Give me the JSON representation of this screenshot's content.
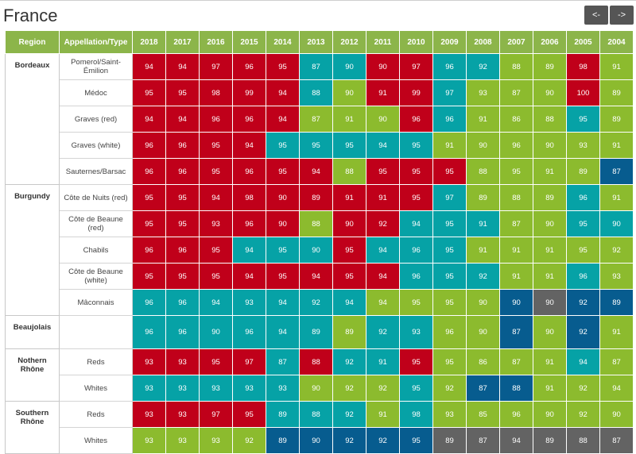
{
  "page": {
    "title": "France"
  },
  "nav": {
    "prev_label": "<-",
    "next_label": "->"
  },
  "table": {
    "headers": [
      "Region",
      "Appellation/Type",
      "2018",
      "2017",
      "2016",
      "2015",
      "2014",
      "2013",
      "2012",
      "2011",
      "2010",
      "2009",
      "2008",
      "2007",
      "2006",
      "2005",
      "2004"
    ],
    "colors": {
      "red": "#c0001a",
      "teal": "#06a2a6",
      "green": "#8cbb2e",
      "blue": "#075c8f",
      "gray": "#636363",
      "header": "#8cb54a"
    },
    "rows": [
      {
        "region": "Bordeaux",
        "span": 5,
        "appellation": "Pomerol/Saint-Émilion",
        "scores": [
          94,
          94,
          97,
          96,
          95,
          87,
          90,
          90,
          97,
          96,
          92,
          88,
          89,
          98,
          91
        ],
        "colors": [
          "r",
          "r",
          "r",
          "r",
          "r",
          "t",
          "t",
          "r",
          "r",
          "t",
          "t",
          "g",
          "g",
          "r",
          "g"
        ]
      },
      {
        "appellation": "Médoc",
        "scores": [
          95,
          95,
          98,
          99,
          94,
          88,
          90,
          91,
          99,
          97,
          93,
          87,
          90,
          100,
          89
        ],
        "colors": [
          "r",
          "r",
          "r",
          "r",
          "r",
          "t",
          "g",
          "r",
          "r",
          "t",
          "g",
          "g",
          "g",
          "r",
          "g"
        ]
      },
      {
        "appellation": "Graves (red)",
        "scores": [
          94,
          94,
          96,
          96,
          94,
          87,
          91,
          90,
          96,
          96,
          91,
          86,
          88,
          95,
          89
        ],
        "colors": [
          "r",
          "r",
          "r",
          "r",
          "r",
          "g",
          "g",
          "g",
          "r",
          "t",
          "g",
          "g",
          "g",
          "t",
          "g"
        ]
      },
      {
        "appellation": "Graves (white)",
        "scores": [
          96,
          96,
          95,
          94,
          95,
          95,
          95,
          94,
          95,
          91,
          90,
          96,
          90,
          93,
          91
        ],
        "colors": [
          "r",
          "r",
          "r",
          "r",
          "t",
          "t",
          "t",
          "t",
          "t",
          "g",
          "g",
          "g",
          "g",
          "g",
          "g"
        ]
      },
      {
        "appellation": "Sauternes/Barsac",
        "scores": [
          96,
          96,
          95,
          96,
          95,
          94,
          88,
          95,
          95,
          95,
          88,
          95,
          91,
          89,
          87
        ],
        "colors": [
          "r",
          "r",
          "r",
          "r",
          "r",
          "r",
          "g",
          "r",
          "r",
          "r",
          "g",
          "g",
          "g",
          "g",
          "b"
        ]
      },
      {
        "region": "Burgundy",
        "span": 5,
        "appellation": "Côte de Nuits (red)",
        "scores": [
          95,
          95,
          94,
          98,
          90,
          89,
          91,
          91,
          95,
          97,
          89,
          88,
          89,
          96,
          91
        ],
        "colors": [
          "r",
          "r",
          "r",
          "r",
          "r",
          "r",
          "r",
          "r",
          "r",
          "t",
          "g",
          "g",
          "g",
          "t",
          "g"
        ]
      },
      {
        "appellation": "Côte de Beaune (red)",
        "scores": [
          95,
          95,
          93,
          96,
          90,
          88,
          90,
          92,
          94,
          95,
          91,
          87,
          90,
          95,
          90
        ],
        "colors": [
          "r",
          "r",
          "r",
          "r",
          "r",
          "g",
          "r",
          "r",
          "t",
          "t",
          "t",
          "g",
          "g",
          "t",
          "t"
        ]
      },
      {
        "appellation": "Chabils",
        "scores": [
          96,
          96,
          95,
          94,
          95,
          90,
          95,
          94,
          96,
          95,
          91,
          91,
          91,
          95,
          92
        ],
        "colors": [
          "r",
          "r",
          "r",
          "t",
          "t",
          "t",
          "r",
          "t",
          "t",
          "t",
          "g",
          "g",
          "g",
          "g",
          "g"
        ]
      },
      {
        "appellation": "Côte de Beaune (white)",
        "scores": [
          95,
          95,
          95,
          94,
          95,
          94,
          95,
          94,
          96,
          95,
          92,
          91,
          91,
          96,
          93
        ],
        "colors": [
          "r",
          "r",
          "r",
          "r",
          "r",
          "r",
          "r",
          "r",
          "t",
          "t",
          "t",
          "g",
          "g",
          "t",
          "g"
        ]
      },
      {
        "appellation": "Mâconnais",
        "scores": [
          96,
          96,
          94,
          93,
          94,
          92,
          94,
          94,
          95,
          95,
          90,
          90,
          90,
          92,
          89
        ],
        "colors": [
          "t",
          "t",
          "t",
          "t",
          "t",
          "t",
          "t",
          "g",
          "g",
          "g",
          "g",
          "b",
          "x",
          "b",
          "b"
        ]
      },
      {
        "region": "Beaujolais",
        "span": 1,
        "appellation": "",
        "scores": [
          96,
          96,
          90,
          96,
          94,
          89,
          89,
          92,
          93,
          96,
          90,
          87,
          90,
          92,
          91
        ],
        "colors": [
          "t",
          "t",
          "t",
          "t",
          "t",
          "t",
          "g",
          "t",
          "t",
          "g",
          "g",
          "b",
          "g",
          "b",
          "g"
        ]
      },
      {
        "region": "Nothern Rhône",
        "span": 2,
        "appellation": "Reds",
        "scores": [
          93,
          93,
          95,
          97,
          87,
          88,
          92,
          91,
          95,
          95,
          86,
          87,
          91,
          94,
          87
        ],
        "colors": [
          "r",
          "r",
          "r",
          "r",
          "t",
          "r",
          "t",
          "t",
          "r",
          "g",
          "g",
          "g",
          "g",
          "t",
          "g"
        ]
      },
      {
        "appellation": "Whites",
        "scores": [
          93,
          93,
          93,
          93,
          93,
          90,
          92,
          92,
          95,
          92,
          87,
          88,
          91,
          92,
          94
        ],
        "colors": [
          "t",
          "t",
          "t",
          "t",
          "t",
          "g",
          "g",
          "g",
          "t",
          "g",
          "b",
          "b",
          "g",
          "g",
          "g"
        ]
      },
      {
        "region": "Southern Rhône",
        "span": 2,
        "appellation": "Reds",
        "scores": [
          93,
          93,
          97,
          95,
          89,
          88,
          92,
          91,
          98,
          93,
          85,
          96,
          90,
          92,
          90
        ],
        "colors": [
          "r",
          "r",
          "r",
          "r",
          "t",
          "t",
          "t",
          "g",
          "t",
          "g",
          "g",
          "g",
          "g",
          "g",
          "g"
        ]
      },
      {
        "appellation": "Whites",
        "scores": [
          93,
          93,
          93,
          92,
          89,
          90,
          92,
          92,
          95,
          89,
          87,
          94,
          89,
          88,
          87
        ],
        "colors": [
          "g",
          "g",
          "g",
          "g",
          "b",
          "b",
          "b",
          "b",
          "b",
          "x",
          "x",
          "x",
          "x",
          "x",
          "x"
        ]
      }
    ]
  }
}
